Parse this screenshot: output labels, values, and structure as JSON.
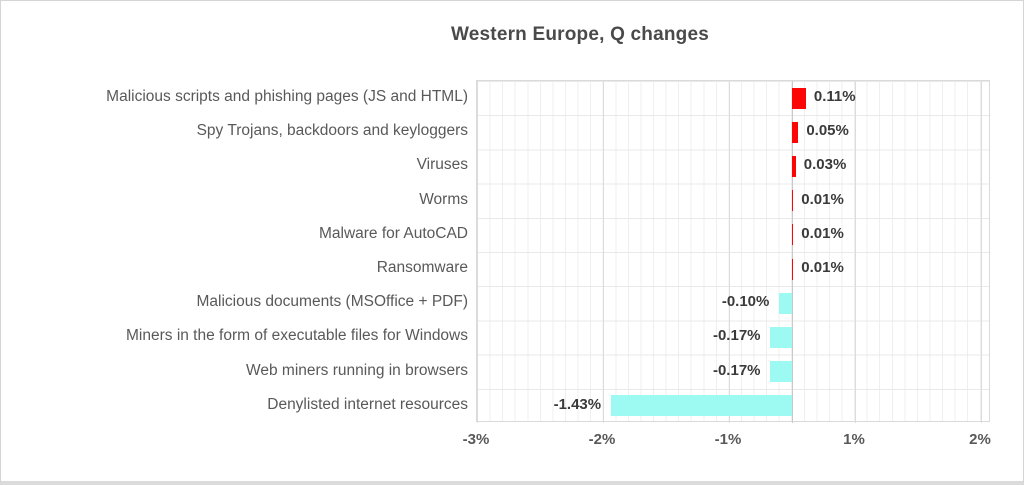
{
  "title": "Western Europe, Q changes",
  "chart_data": {
    "type": "bar",
    "orientation": "horizontal",
    "title": "Western Europe, Q changes",
    "categories": [
      "Malicious scripts and phishing pages (JS and HTML)",
      "Spy Trojans, backdoors and keyloggers",
      "Viruses",
      "Worms",
      "Malware for AutoCAD",
      "Ransomware",
      "Malicious documents (MSOffice + PDF)",
      "Miners in the form of executable files for Windows",
      "Web miners running in browsers",
      "Denylisted internet resources"
    ],
    "values": [
      0.11,
      0.05,
      0.03,
      0.01,
      0.01,
      0.01,
      -0.1,
      -0.17,
      -0.17,
      -1.43
    ],
    "value_labels": [
      "0.11%",
      "0.05%",
      "0.03%",
      "0.01%",
      "0.01%",
      "0.01%",
      "-0.10%",
      "-0.17%",
      "-0.17%",
      "-1.43%"
    ],
    "x_tick_labels": [
      "-3%",
      "-2%",
      "-1%",
      "1%",
      "2%"
    ],
    "x_tick_values": [
      -3,
      -2,
      -1,
      1,
      2
    ],
    "xlim": [
      -3,
      2
    ],
    "grid": true,
    "legend": "none",
    "positive_color": "#fb0505",
    "negative_color": "#9dfaf3",
    "title_color": "#4a4a4a",
    "label_color": "#595959",
    "value_label_color": "#3a3a3a"
  }
}
